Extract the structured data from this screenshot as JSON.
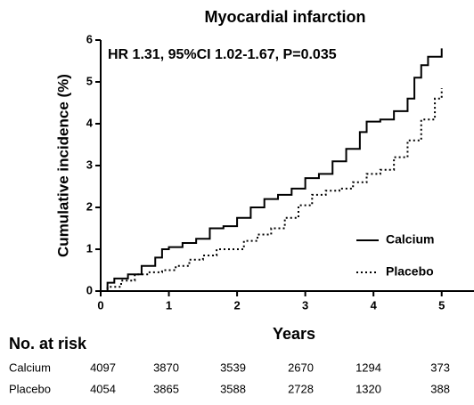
{
  "chart_data": {
    "type": "line",
    "step": "post",
    "title": "Myocardial infarction",
    "annotation": "HR 1.31, 95%CI 1.02-1.67, P=0.035",
    "xlabel": "Years",
    "ylabel": "Cumulative incidence (%)",
    "xlim": [
      0,
      5.5
    ],
    "xticks": [
      0,
      1,
      2,
      3,
      4,
      5
    ],
    "ylim": [
      0,
      6
    ],
    "yticks": [
      0,
      1,
      2,
      3,
      4,
      5,
      6
    ],
    "legend": "lower right",
    "series": [
      {
        "name": "Calcium",
        "color": "#000000",
        "dash": "solid",
        "x": [
          0,
          0.1,
          0.2,
          0.4,
          0.6,
          0.8,
          0.9,
          1.0,
          1.2,
          1.4,
          1.6,
          1.8,
          2.0,
          2.2,
          2.4,
          2.6,
          2.8,
          3.0,
          3.2,
          3.4,
          3.6,
          3.8,
          3.9,
          4.1,
          4.3,
          4.5,
          4.6,
          4.7,
          4.8,
          5.0
        ],
        "values": [
          0,
          0.2,
          0.3,
          0.4,
          0.6,
          0.8,
          1.0,
          1.05,
          1.15,
          1.25,
          1.5,
          1.55,
          1.75,
          2.0,
          2.2,
          2.3,
          2.45,
          2.7,
          2.8,
          3.1,
          3.4,
          3.8,
          4.05,
          4.1,
          4.3,
          4.6,
          5.1,
          5.4,
          5.6,
          5.8
        ]
      },
      {
        "name": "Placebo",
        "color": "#000000",
        "dash": "dotted",
        "x": [
          0,
          0.1,
          0.3,
          0.5,
          0.7,
          0.9,
          1.1,
          1.3,
          1.5,
          1.7,
          1.9,
          2.1,
          2.3,
          2.5,
          2.7,
          2.9,
          3.1,
          3.3,
          3.5,
          3.7,
          3.9,
          4.1,
          4.3,
          4.5,
          4.7,
          4.9,
          5.0
        ],
        "values": [
          0,
          0.1,
          0.25,
          0.4,
          0.45,
          0.5,
          0.6,
          0.75,
          0.85,
          1.0,
          1.0,
          1.2,
          1.35,
          1.5,
          1.75,
          2.05,
          2.3,
          2.4,
          2.45,
          2.6,
          2.8,
          2.9,
          3.2,
          3.6,
          4.1,
          4.6,
          4.85
        ]
      }
    ],
    "risk_table": {
      "title": "No. at risk",
      "rows": [
        {
          "name": "Calcium",
          "values": [
            4097,
            3870,
            3539,
            2670,
            1294,
            373
          ]
        },
        {
          "name": "Placebo",
          "values": [
            4054,
            3865,
            3588,
            2728,
            1320,
            388
          ]
        }
      ]
    }
  }
}
